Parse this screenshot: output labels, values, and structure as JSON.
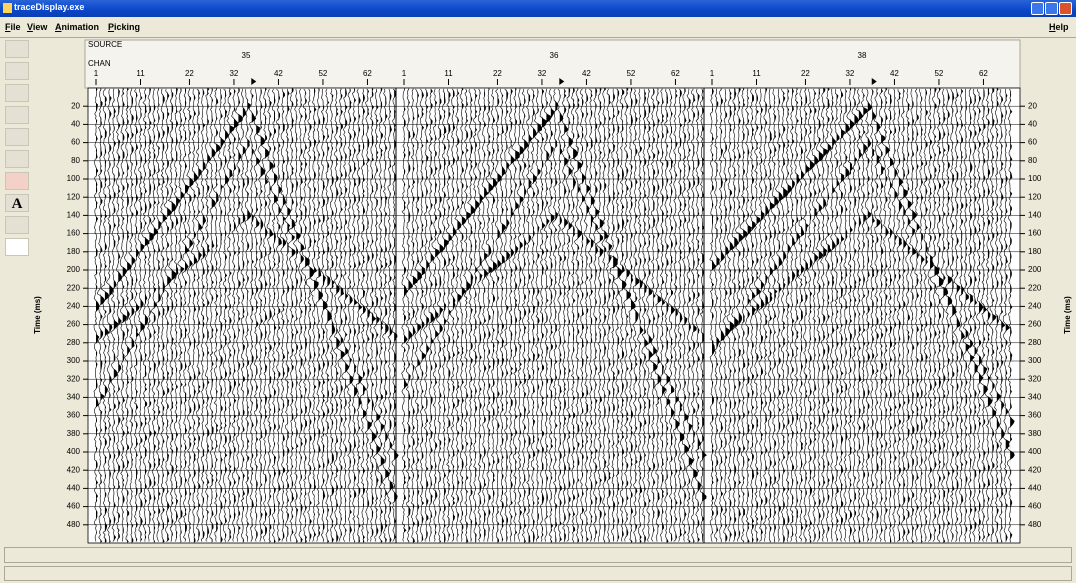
{
  "window": {
    "title": "traceDisplay.exe"
  },
  "menu": {
    "items": [
      "File",
      "View",
      "Animation",
      "Picking"
    ],
    "help": "Help"
  },
  "header": {
    "source_label": "SOURCE",
    "chan_label": "CHAN"
  },
  "panels": [
    {
      "source": 35,
      "channel_ticks": [
        1,
        11,
        22,
        32,
        42,
        52,
        62
      ]
    },
    {
      "source": 36,
      "channel_ticks": [
        1,
        11,
        22,
        32,
        42,
        52,
        62
      ]
    },
    {
      "source": 38,
      "channel_ticks": [
        1,
        11,
        22,
        32,
        42,
        52,
        62
      ]
    }
  ],
  "time_axis": {
    "label": "Time (ms)",
    "range": [
      0,
      500
    ],
    "ticks": [
      20,
      40,
      60,
      80,
      100,
      120,
      140,
      160,
      180,
      200,
      220,
      240,
      260,
      280,
      300,
      320,
      340,
      360,
      380,
      400,
      420,
      440,
      460,
      480
    ]
  }
}
